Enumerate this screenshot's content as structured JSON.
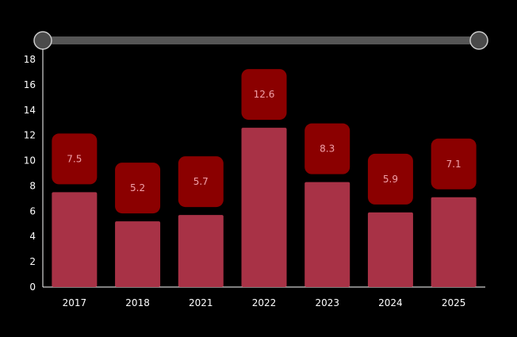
{
  "chart_data": {
    "type": "bar",
    "categories": [
      "2017",
      "2018",
      "2021",
      "2022",
      "2023",
      "2024",
      "2025"
    ],
    "values": [
      7.5,
      5.2,
      5.7,
      12.6,
      8.3,
      5.9,
      7.1
    ],
    "ylim": [
      0,
      18
    ],
    "yticks": [
      0,
      2,
      4,
      6,
      8,
      10,
      12,
      14,
      16,
      18
    ],
    "title": "",
    "xlabel": "",
    "ylabel": "",
    "grid": false,
    "colors": {
      "background": "#000000",
      "bar": "#a83246",
      "label_box": "#8b0000",
      "label_text": "#f0a0a8",
      "axis": "#ffffff",
      "tick_text": "#ffffff",
      "slider_track": "#555555",
      "slider_handle": "#4a4a4a",
      "slider_handle_stroke": "#cccccc"
    },
    "range_slider": {
      "start": 0,
      "end": 1
    }
  }
}
